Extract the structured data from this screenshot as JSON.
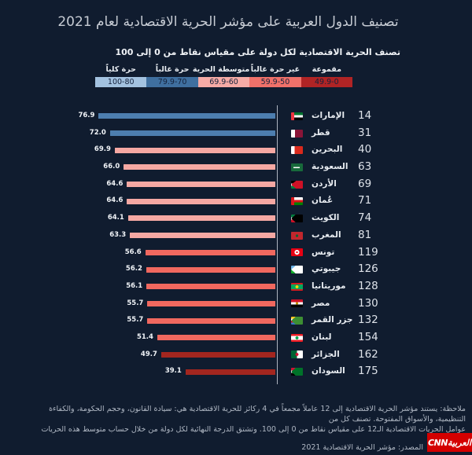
{
  "title": "تصنيف الدول العربية على مؤشر الحرية الاقتصادية لعام 2021",
  "subtitle": "تصنف الحرية الاقتصادية لكل دولة على مقياس نقاط من 0 إلى 100",
  "colors": {
    "background": "#101C2F",
    "title_text": "#C7CCD4",
    "axis_line": "#C9CFD8",
    "logo_red": "#D40000"
  },
  "legend": {
    "categories": [
      {
        "label": "مقموعة",
        "range": "49.9-0",
        "color": "#B02425",
        "bar_color": "#A3261F"
      },
      {
        "label": "غير حرة غالباً",
        "range": "59.9-50",
        "color": "#F0716A",
        "bar_color": "#F0685F"
      },
      {
        "label": "متوسطة الحرية",
        "range": "69.9-60",
        "color": "#F6ABA6",
        "bar_color": "#F5A8A3"
      },
      {
        "label": "حرة غالباً",
        "range": "79.9-70",
        "color": "#3F6F9F",
        "bar_color": "#4D7EAF"
      },
      {
        "label": "حرة كلياً",
        "range": "100-80",
        "color": "#A3C2E0",
        "bar_color": "#A3C2E0"
      }
    ]
  },
  "chart_data": {
    "type": "bar",
    "orientation": "horizontal-rtl",
    "xlim": [
      0,
      100
    ],
    "title": "تصنيف الدول العربية على مؤشر الحرية الاقتصادية لعام 2021",
    "rows": [
      {
        "country": "الإمارات",
        "rank": "14",
        "value": 76.9,
        "value_label": "76.9",
        "category": 3,
        "flag": "uae"
      },
      {
        "country": "قطر",
        "rank": "31",
        "value": 72.0,
        "value_label": "72.0",
        "category": 3,
        "flag": "qatar"
      },
      {
        "country": "البحرين",
        "rank": "40",
        "value": 69.9,
        "value_label": "69.9",
        "category": 2,
        "flag": "bahrain"
      },
      {
        "country": "السعودية",
        "rank": "63",
        "value": 66.0,
        "value_label": "66.0",
        "category": 2,
        "flag": "saudi"
      },
      {
        "country": "الأردن",
        "rank": "69",
        "value": 64.6,
        "value_label": "64.6",
        "category": 2,
        "flag": "jordan"
      },
      {
        "country": "عُمان",
        "rank": "71",
        "value": 64.6,
        "value_label": "64.6",
        "category": 2,
        "flag": "oman"
      },
      {
        "country": "الكويت",
        "rank": "74",
        "value": 64.1,
        "value_label": "64.1",
        "category": 2,
        "flag": "kuwait"
      },
      {
        "country": "المغرب",
        "rank": "81",
        "value": 63.3,
        "value_label": "63.3",
        "category": 2,
        "flag": "morocco"
      },
      {
        "country": "تونس",
        "rank": "119",
        "value": 56.6,
        "value_label": "56.6",
        "category": 1,
        "flag": "tunisia"
      },
      {
        "country": "جيبوتي",
        "rank": "126",
        "value": 56.2,
        "value_label": "56.2",
        "category": 1,
        "flag": "djibouti"
      },
      {
        "country": "موريتانيا",
        "rank": "128",
        "value": 56.1,
        "value_label": "56.1",
        "category": 1,
        "flag": "mauritania"
      },
      {
        "country": "مصر",
        "rank": "130",
        "value": 55.7,
        "value_label": "55.7",
        "category": 1,
        "flag": "egypt"
      },
      {
        "country": "جزر القمر",
        "rank": "132",
        "value": 55.7,
        "value_label": "55.7",
        "category": 1,
        "flag": "comoros"
      },
      {
        "country": "لبنان",
        "rank": "154",
        "value": 51.4,
        "value_label": "51.4",
        "category": 1,
        "flag": "lebanon"
      },
      {
        "country": "الجزائر",
        "rank": "162",
        "value": 49.7,
        "value_label": "49.7",
        "category": 0,
        "flag": "algeria"
      },
      {
        "country": "السودان",
        "rank": "175",
        "value": 39.1,
        "value_label": "39.1",
        "category": 0,
        "flag": "sudan"
      }
    ]
  },
  "footnote": {
    "line1": "ملاحظة: يستند مؤشر الحرية الاقتصادية إلى 12 عاملاً مجمعاً في 4 ركائز للحرية الاقتصادية هي: سيادة القانون، وحجم الحكومة، والكفاءة التنظيمية، والأسواق المفتوحة. تصنف كل من",
    "line2": "عوامل الحريات الاقتصادية الـ12 على مقياس نقاط من 0 إلى 100. وتشتق الدرجة النهائية لكل دولة من خلال حساب متوسط هذه الحريات الاقتصادية"
  },
  "source": "المصدر: مؤشر الحرية الاقتصادية 2021",
  "logo": {
    "text": "العربيةCNN"
  }
}
